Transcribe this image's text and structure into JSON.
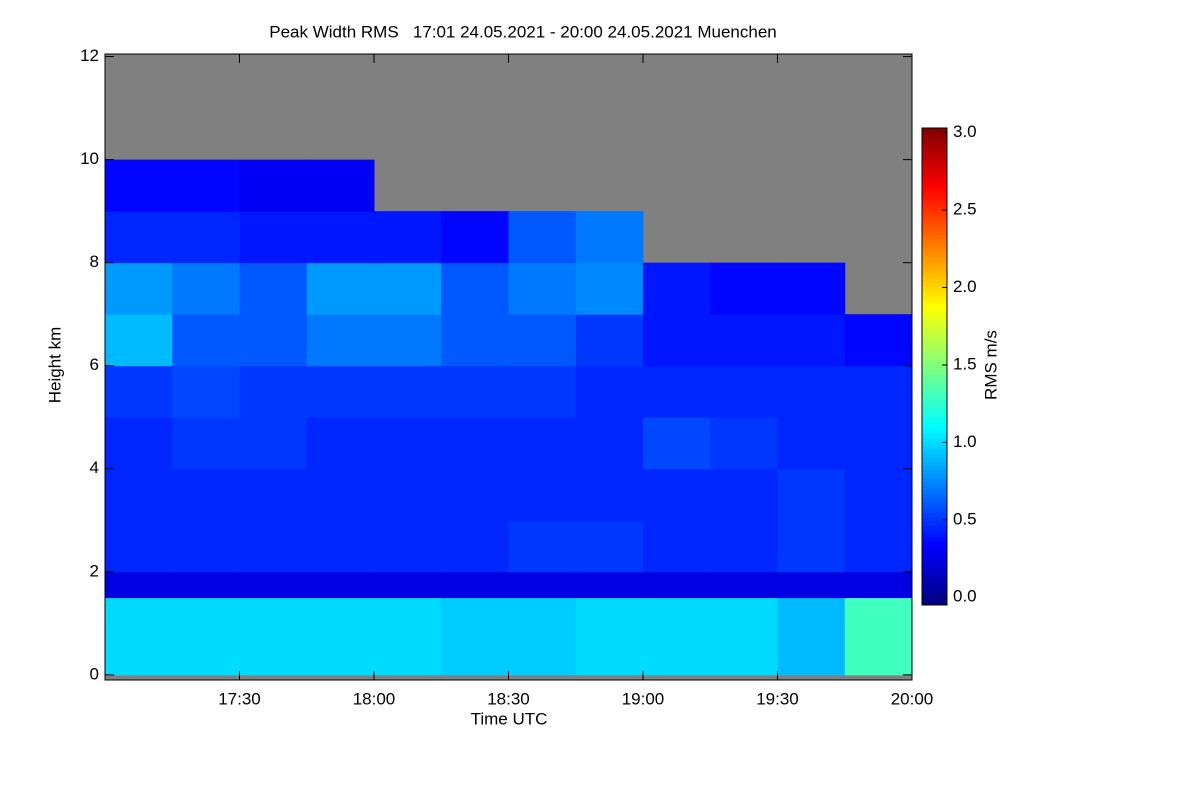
{
  "chart_data": {
    "type": "heatmap",
    "title": "Peak Width RMS   17:01 24.05.2021 - 20:00 24.05.2021 Muenchen",
    "x_label": "Time UTC",
    "y_label": "Height km",
    "colorbar_label": "RMS m/s",
    "colormap": "jet",
    "no_data_color": "#808080",
    "xlim": [
      17.0,
      20.0
    ],
    "xticks": [
      {
        "value": 17.5,
        "label": "17:30"
      },
      {
        "value": 18.0,
        "label": "18:00"
      },
      {
        "value": 18.5,
        "label": "18:30"
      },
      {
        "value": 19.0,
        "label": "19:00"
      },
      {
        "value": 19.5,
        "label": "19:30"
      },
      {
        "value": 20.0,
        "label": "20:00"
      }
    ],
    "ylim": [
      -0.1,
      12.05
    ],
    "yticks": [
      0,
      2,
      4,
      6,
      8,
      10,
      12
    ],
    "clim": [
      -0.05,
      3.03
    ],
    "cticks": [
      {
        "value": 0,
        "label": "0.0"
      },
      {
        "value": 0.5,
        "label": "0.5"
      },
      {
        "value": 1,
        "label": "1.0"
      },
      {
        "value": 1.5,
        "label": "1.5"
      },
      {
        "value": 2,
        "label": "2.0"
      },
      {
        "value": 2.5,
        "label": "2.5"
      },
      {
        "value": 3,
        "label": "3.0"
      }
    ],
    "x_edges": [
      17.0,
      17.25,
      17.5,
      17.75,
      18.0,
      18.25,
      18.5,
      18.75,
      19.0,
      19.25,
      19.5,
      19.75,
      20.0
    ],
    "y_edges": [
      0,
      1.5,
      2,
      3,
      4,
      5,
      6,
      7,
      8,
      9,
      10,
      11,
      12
    ],
    "z": [
      [
        1.0,
        1.0,
        1.0,
        1.0,
        1.0,
        0.95,
        0.95,
        1.0,
        1.0,
        1.0,
        0.9,
        1.3
      ],
      [
        0.25,
        0.25,
        0.25,
        0.25,
        0.25,
        0.25,
        0.25,
        0.25,
        0.25,
        0.25,
        0.25,
        0.25
      ],
      [
        0.45,
        0.45,
        0.45,
        0.45,
        0.45,
        0.45,
        0.5,
        0.5,
        0.45,
        0.45,
        0.5,
        0.45
      ],
      [
        0.45,
        0.45,
        0.45,
        0.45,
        0.45,
        0.45,
        0.45,
        0.45,
        0.45,
        0.45,
        0.5,
        0.45
      ],
      [
        0.45,
        0.5,
        0.5,
        0.45,
        0.45,
        0.45,
        0.45,
        0.45,
        0.55,
        0.5,
        0.45,
        0.45
      ],
      [
        0.5,
        0.55,
        0.5,
        0.5,
        0.5,
        0.5,
        0.5,
        0.45,
        0.45,
        0.45,
        0.45,
        0.45
      ],
      [
        0.9,
        0.6,
        0.6,
        0.7,
        0.7,
        0.6,
        0.6,
        0.5,
        0.4,
        0.4,
        0.4,
        0.35
      ],
      [
        0.8,
        0.7,
        0.6,
        0.8,
        0.8,
        0.6,
        0.7,
        0.75,
        0.4,
        0.35,
        0.35,
        null
      ],
      [
        0.45,
        0.45,
        0.4,
        0.4,
        0.4,
        0.35,
        0.6,
        0.7,
        null,
        null,
        null,
        null
      ],
      [
        0.35,
        0.35,
        0.3,
        0.3,
        null,
        null,
        null,
        null,
        null,
        null,
        null,
        null
      ],
      [
        null,
        null,
        null,
        null,
        null,
        null,
        null,
        null,
        null,
        null,
        null,
        null
      ],
      [
        null,
        null,
        null,
        null,
        null,
        null,
        null,
        null,
        null,
        null,
        null,
        null
      ]
    ]
  }
}
